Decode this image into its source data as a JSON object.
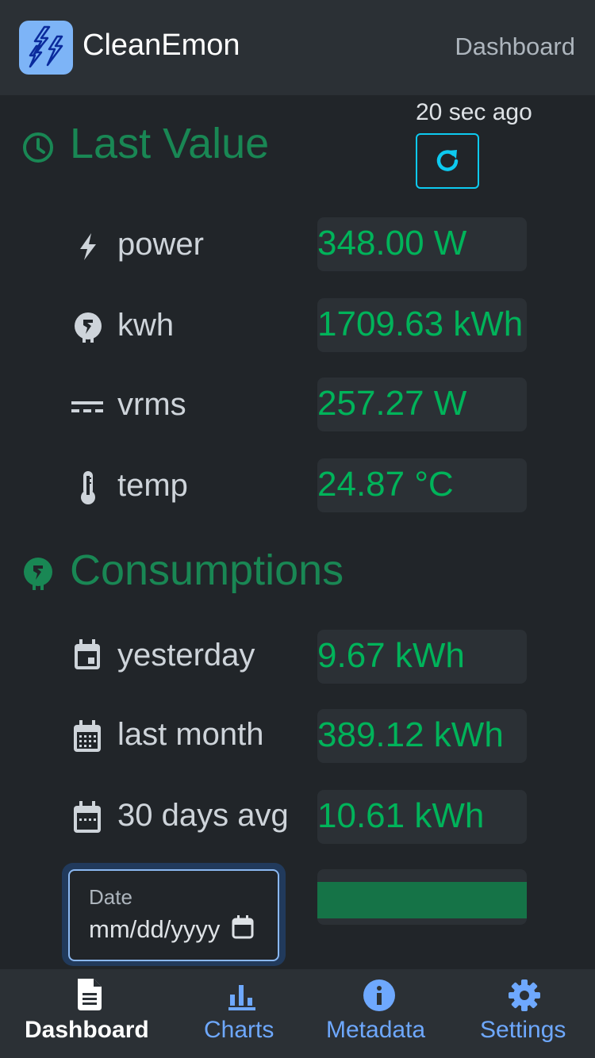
{
  "header": {
    "app_title": "CleanEmon",
    "current_page": "Dashboard"
  },
  "last_value": {
    "title": "Last Value",
    "updated_ago": "20 sec ago",
    "refresh_icon": "refresh-icon",
    "rows": [
      {
        "label": "power",
        "value": "348.00 W",
        "icon": "bolt-icon"
      },
      {
        "label": "kwh",
        "value": "1709.63 kWh",
        "icon": "plug-circle-icon"
      },
      {
        "label": "vrms",
        "value": "257.27 W",
        "icon": "dc-current-icon"
      },
      {
        "label": "temp",
        "value": "24.87 °C",
        "icon": "thermometer-icon"
      }
    ]
  },
  "consumptions": {
    "title": "Consumptions",
    "rows": [
      {
        "label": "yesterday",
        "value": "9.67 kWh",
        "icon": "calendar-day-icon"
      },
      {
        "label": "last month",
        "value": "389.12 kWh",
        "icon": "calendar-month-icon"
      },
      {
        "label": "30 days avg",
        "value": "10.61 kWh",
        "icon": "calendar-week-icon"
      }
    ]
  },
  "date_input": {
    "label": "Date",
    "placeholder": "mm/dd/yyyy"
  },
  "colors": {
    "accent_green": "#198754",
    "value_green": "#00b35a",
    "link_blue": "#6ea8fe",
    "refresh_cyan": "#0dcaf0"
  },
  "bottom_nav": [
    {
      "label": "Dashboard",
      "icon": "document-icon",
      "active": true
    },
    {
      "label": "Charts",
      "icon": "bar-chart-icon",
      "active": false
    },
    {
      "label": "Metadata",
      "icon": "info-icon",
      "active": false
    },
    {
      "label": "Settings",
      "icon": "gear-icon",
      "active": false
    }
  ]
}
